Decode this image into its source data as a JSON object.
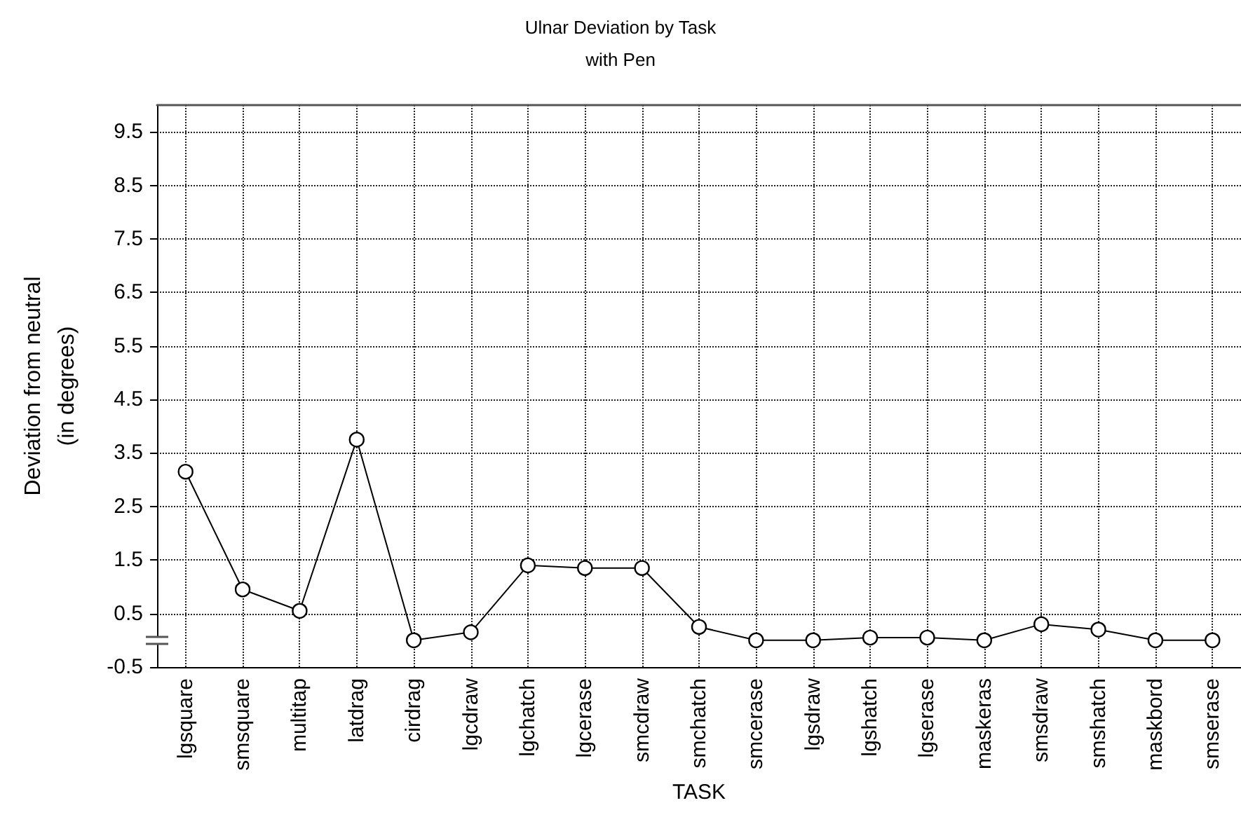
{
  "chart_data": {
    "type": "line",
    "title": "Ulnar Deviation by Task",
    "subtitle": "with Pen",
    "xlabel": "TASK",
    "ylabel": "Deviation from neutral\n(in degrees)",
    "categories": [
      "lgsquare",
      "smsquare",
      "multitap",
      "latdrag",
      "cirdrag",
      "lgcdraw",
      "lgchatch",
      "lgcerase",
      "smcdraw",
      "smchatch",
      "smcerase",
      "lgsdraw",
      "lgshatch",
      "lgserase",
      "maskeras",
      "smsdraw",
      "smshatch",
      "maskbord",
      "smserase"
    ],
    "values": [
      3.15,
      0.95,
      0.55,
      3.75,
      0,
      0.15,
      1.4,
      1.35,
      1.35,
      0.25,
      0,
      0,
      0.05,
      0.05,
      0,
      0.3,
      0.2,
      0,
      0
    ],
    "color": "#000000",
    "ylim": [
      -0.5,
      10.0
    ],
    "yticks": [
      -0.5,
      0.5,
      1.5,
      2.5,
      3.5,
      4.5,
      5.5,
      6.5,
      7.5,
      8.5,
      9.5
    ],
    "grid": true,
    "marker": "circle",
    "line_style": "solid"
  }
}
